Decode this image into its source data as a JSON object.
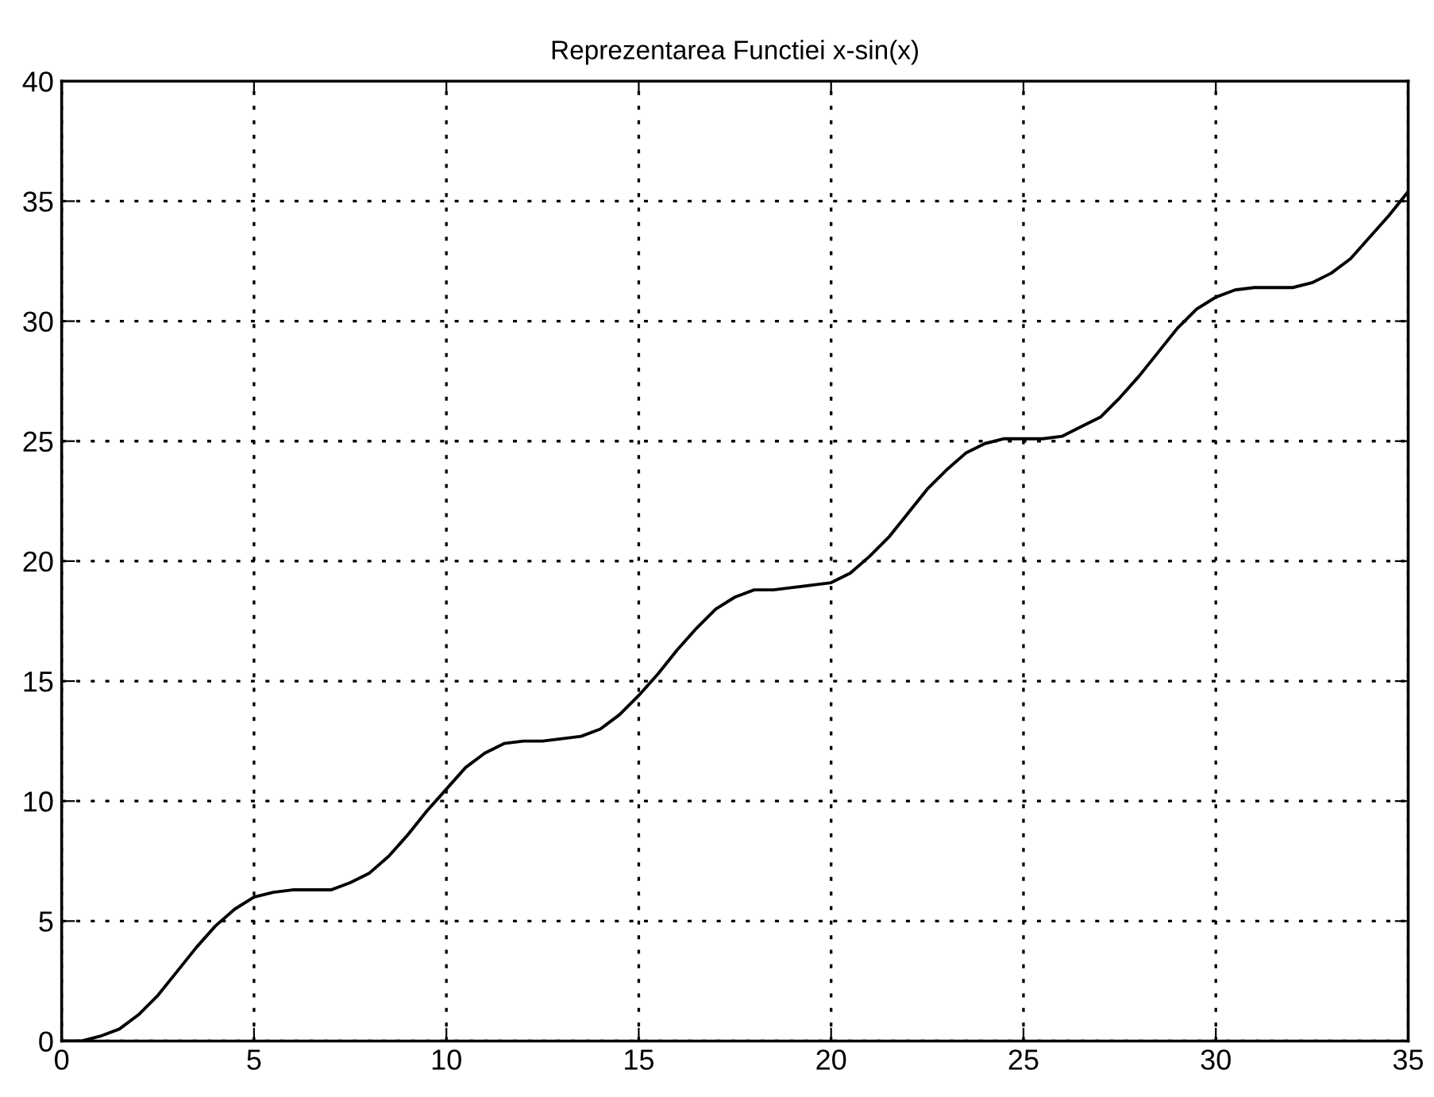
{
  "chart_data": {
    "type": "line",
    "title": "Reprezentarea Functiei x-sin(x)",
    "xlim": [
      0,
      35
    ],
    "xticks": [
      0,
      5,
      10,
      15,
      20,
      25,
      30,
      35
    ],
    "ylim": [
      0,
      40
    ],
    "yticks": [
      0,
      5,
      10,
      15,
      20,
      25,
      30,
      35,
      40
    ],
    "grid": true,
    "line_style": "solid",
    "series": [
      {
        "color": "#000000",
        "x": [
          0,
          0.5,
          1,
          1.5,
          2,
          2.5,
          3,
          3.5,
          4,
          4.5,
          5,
          5.5,
          6,
          6.5,
          7,
          7.5,
          8,
          8.5,
          9,
          9.5,
          10,
          10.5,
          11,
          11.5,
          12,
          12.5,
          13,
          13.5,
          14,
          14.5,
          15,
          15.5,
          16,
          16.5,
          17,
          17.5,
          18,
          18.5,
          19,
          19.5,
          20,
          20.5,
          21,
          21.5,
          22,
          22.5,
          23,
          23.5,
          24,
          24.5,
          25,
          25.5,
          26,
          26.5,
          27,
          27.5,
          28,
          28.5,
          29,
          29.5,
          30,
          30.5,
          31,
          31.5,
          32,
          32.5,
          33,
          33.5,
          34,
          34.5,
          35
        ],
        "values": [
          0,
          0.0,
          0.2,
          0.5,
          1.1,
          1.9,
          2.9,
          3.9,
          4.8,
          5.5,
          6.0,
          6.2,
          6.3,
          6.3,
          6.3,
          6.6,
          7.0,
          7.7,
          8.6,
          9.6,
          10.5,
          11.4,
          12.0,
          12.4,
          12.5,
          12.5,
          12.6,
          12.7,
          13.0,
          13.6,
          14.4,
          15.3,
          16.3,
          17.2,
          18.0,
          18.5,
          18.8,
          18.8,
          18.9,
          19.0,
          19.1,
          19.5,
          20.2,
          21.0,
          22.0,
          23.0,
          23.8,
          24.5,
          24.9,
          25.1,
          25.1,
          25.1,
          25.2,
          25.6,
          26.0,
          26.8,
          27.7,
          28.7,
          29.7,
          30.5,
          31.0,
          31.3,
          31.4,
          31.4,
          31.4,
          31.6,
          32.0,
          32.6,
          33.5,
          34.4,
          35.4
        ]
      }
    ]
  }
}
